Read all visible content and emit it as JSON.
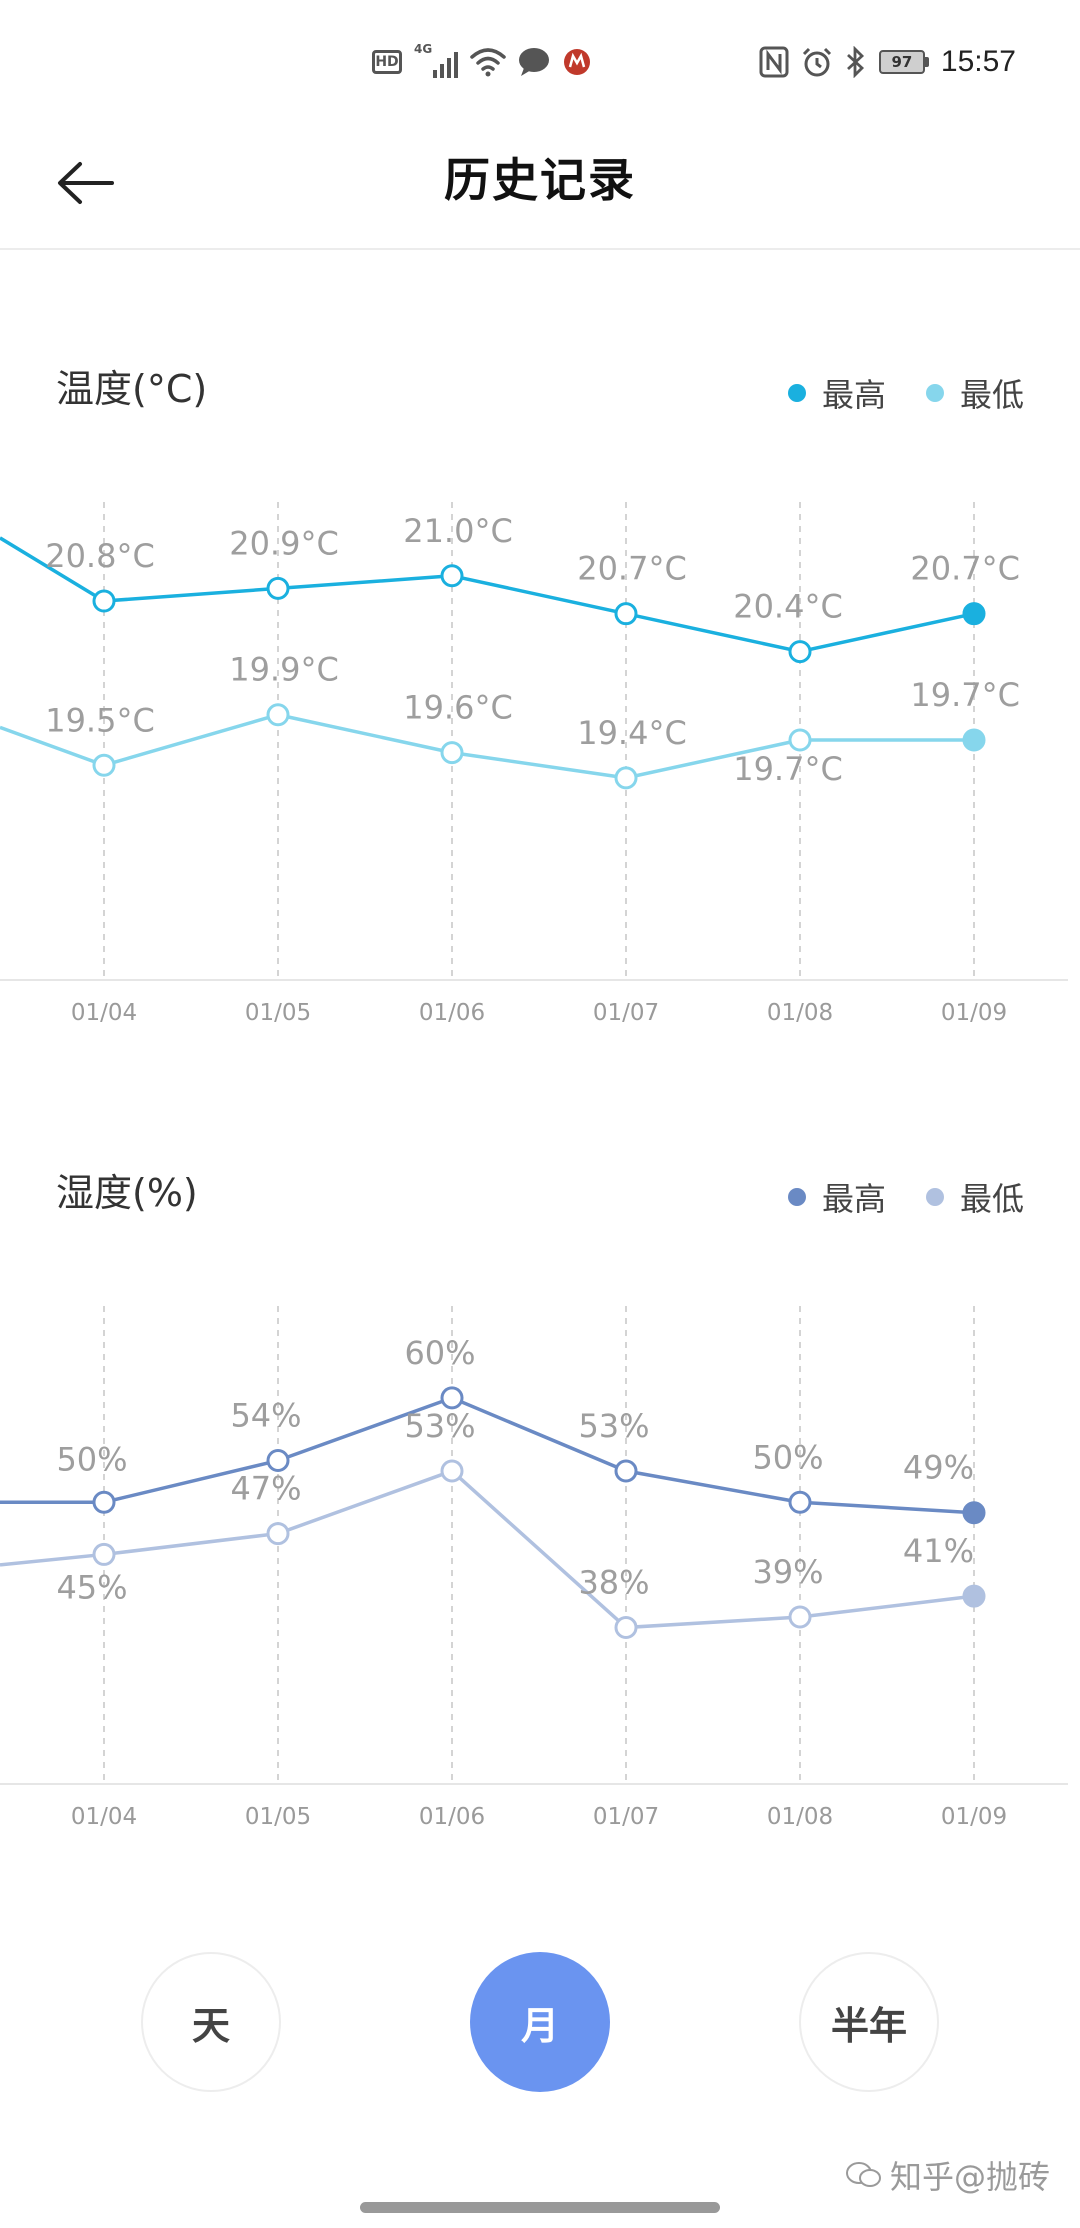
{
  "status_bar": {
    "hd": "HD",
    "network": "4G",
    "battery": "97",
    "time": "15:57"
  },
  "header": {
    "title": "历史记录"
  },
  "temperature": {
    "title": "温度(°C)",
    "legend": [
      "最高",
      "最低"
    ]
  },
  "humidity": {
    "title": "湿度(%)",
    "legend": [
      "最高",
      "最低"
    ]
  },
  "periods": [
    "天",
    "月",
    "半年"
  ],
  "active_period": "月",
  "watermark": "知乎@抛砖",
  "colors": {
    "temp_high": "#1ab0df",
    "temp_low": "#86d6ec",
    "hum_high": "#6a8ac4",
    "hum_low": "#b0c1e0",
    "active_button": "#6a94f0"
  },
  "chart_data": [
    {
      "type": "line",
      "title": "温度(°C)",
      "categories": [
        "01/04",
        "01/05",
        "01/06",
        "01/07",
        "01/08",
        "01/09"
      ],
      "ylim": [
        17.8,
        21.6
      ],
      "legend_position": "top-right",
      "grid": "vertical-dashed",
      "series": [
        {
          "name": "最高",
          "values": [
            20.8,
            20.9,
            21.0,
            20.7,
            20.4,
            20.7
          ],
          "labels": [
            "20.8°C",
            "20.9°C",
            "21.0°C",
            "20.7°C",
            "20.4°C",
            "20.7°C"
          ],
          "leading_value": 21.3
        },
        {
          "name": "最低",
          "values": [
            19.5,
            19.9,
            19.6,
            19.4,
            19.7,
            19.7
          ],
          "labels": [
            "19.5°C",
            "19.9°C",
            "19.6°C",
            "19.4°C",
            "19.7°C",
            "19.7°C"
          ],
          "leading_value": 19.8
        }
      ]
    },
    {
      "type": "line",
      "title": "湿度(%)",
      "categories": [
        "01/04",
        "01/05",
        "01/06",
        "01/07",
        "01/08",
        "01/09"
      ],
      "ylim": [
        23,
        69
      ],
      "legend_position": "top-right",
      "grid": "vertical-dashed",
      "series": [
        {
          "name": "最高",
          "values": [
            50,
            54,
            60,
            53,
            50,
            49
          ],
          "labels": [
            "50%",
            "54%",
            "60%",
            "53%",
            "50%",
            "49%"
          ],
          "leading_value": 50
        },
        {
          "name": "最低",
          "values": [
            45,
            47,
            53,
            38,
            39,
            41
          ],
          "labels": [
            "45%",
            "47%",
            "53%",
            "38%",
            "39%",
            "41%"
          ],
          "leading_value": 44
        }
      ]
    }
  ]
}
